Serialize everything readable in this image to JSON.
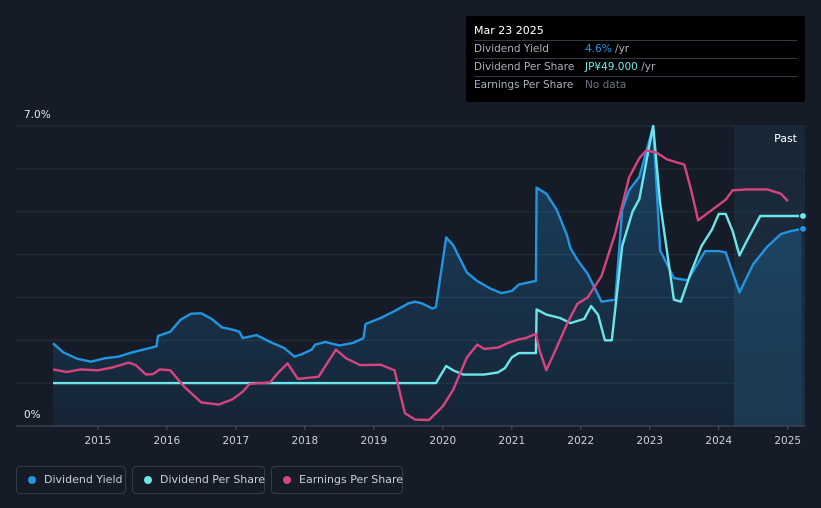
{
  "tooltip": {
    "date": "Mar 23 2025",
    "rows": [
      {
        "label": "Dividend Yield",
        "value": "4.6%",
        "unit": " /yr",
        "color": "#2394df"
      },
      {
        "label": "Dividend Per Share",
        "value": "JP¥49.000",
        "unit": " /yr",
        "color": "#6ce5e8"
      },
      {
        "label": "Earnings Per Share",
        "value": "No data",
        "unit": "",
        "color": "#6c7480"
      }
    ]
  },
  "legend": [
    {
      "label": "Dividend Yield",
      "color": "#2394df"
    },
    {
      "label": "Dividend Per Share",
      "color": "#6ce5e8"
    },
    {
      "label": "Earnings Per Share",
      "color": "#d6447f"
    }
  ],
  "chart_data": {
    "type": "line",
    "past_label": "Past",
    "y_tick_labels": [
      "7.0%",
      "0%"
    ],
    "ylim": [
      0,
      7.0
    ],
    "xlim": [
      2014.35,
      2025.25
    ],
    "x_ticks": [
      "2015",
      "2016",
      "2017",
      "2018",
      "2019",
      "2020",
      "2021",
      "2022",
      "2023",
      "2024",
      "2025"
    ],
    "past_region_start": 2024.22,
    "series": [
      {
        "name": "Dividend Yield",
        "color": "#2394df",
        "fill": true,
        "points": [
          [
            2014.35,
            1.93
          ],
          [
            2014.5,
            1.72
          ],
          [
            2014.7,
            1.57
          ],
          [
            2014.9,
            1.5
          ],
          [
            2015.1,
            1.58
          ],
          [
            2015.3,
            1.62
          ],
          [
            2015.5,
            1.72
          ],
          [
            2015.7,
            1.8
          ],
          [
            2015.85,
            1.86
          ],
          [
            2015.87,
            2.1
          ],
          [
            2016.05,
            2.2
          ],
          [
            2016.2,
            2.48
          ],
          [
            2016.35,
            2.62
          ],
          [
            2016.5,
            2.63
          ],
          [
            2016.65,
            2.5
          ],
          [
            2016.8,
            2.3
          ],
          [
            2016.95,
            2.25
          ],
          [
            2017.05,
            2.2
          ],
          [
            2017.1,
            2.05
          ],
          [
            2017.3,
            2.12
          ],
          [
            2017.5,
            1.96
          ],
          [
            2017.7,
            1.82
          ],
          [
            2017.85,
            1.62
          ],
          [
            2017.95,
            1.67
          ],
          [
            2018.1,
            1.78
          ],
          [
            2018.15,
            1.9
          ],
          [
            2018.3,
            1.96
          ],
          [
            2018.5,
            1.88
          ],
          [
            2018.7,
            1.94
          ],
          [
            2018.85,
            2.05
          ],
          [
            2018.88,
            2.38
          ],
          [
            2019.1,
            2.52
          ],
          [
            2019.3,
            2.68
          ],
          [
            2019.5,
            2.86
          ],
          [
            2019.6,
            2.9
          ],
          [
            2019.7,
            2.86
          ],
          [
            2019.85,
            2.74
          ],
          [
            2019.9,
            2.78
          ],
          [
            2020.05,
            4.4
          ],
          [
            2020.15,
            4.22
          ],
          [
            2020.35,
            3.58
          ],
          [
            2020.5,
            3.38
          ],
          [
            2020.7,
            3.2
          ],
          [
            2020.85,
            3.1
          ],
          [
            2021.0,
            3.15
          ],
          [
            2021.1,
            3.3
          ],
          [
            2021.3,
            3.37
          ],
          [
            2021.35,
            3.38
          ],
          [
            2021.36,
            5.56
          ],
          [
            2021.5,
            5.42
          ],
          [
            2021.65,
            5.05
          ],
          [
            2021.8,
            4.45
          ],
          [
            2021.85,
            4.15
          ],
          [
            2021.95,
            3.88
          ],
          [
            2022.1,
            3.55
          ],
          [
            2022.3,
            2.9
          ],
          [
            2022.5,
            2.95
          ],
          [
            2022.6,
            5.05
          ],
          [
            2022.7,
            5.5
          ],
          [
            2022.85,
            5.82
          ],
          [
            2023.0,
            6.7
          ],
          [
            2023.05,
            7.0
          ],
          [
            2023.15,
            4.1
          ],
          [
            2023.35,
            3.45
          ],
          [
            2023.55,
            3.4
          ],
          [
            2023.8,
            4.08
          ],
          [
            2024.0,
            4.08
          ],
          [
            2024.1,
            4.05
          ],
          [
            2024.3,
            3.12
          ],
          [
            2024.5,
            3.78
          ],
          [
            2024.7,
            4.18
          ],
          [
            2024.9,
            4.48
          ],
          [
            2025.05,
            4.55
          ],
          [
            2025.2,
            4.6
          ]
        ]
      },
      {
        "name": "Dividend Per Share",
        "color": "#6ce5e8",
        "fill": false,
        "points": [
          [
            2014.35,
            1.0
          ],
          [
            2019.9,
            1.0
          ],
          [
            2020.05,
            1.4
          ],
          [
            2020.15,
            1.3
          ],
          [
            2020.3,
            1.2
          ],
          [
            2020.6,
            1.2
          ],
          [
            2020.8,
            1.25
          ],
          [
            2020.9,
            1.35
          ],
          [
            2021.0,
            1.6
          ],
          [
            2021.1,
            1.7
          ],
          [
            2021.35,
            1.7
          ],
          [
            2021.36,
            2.72
          ],
          [
            2021.5,
            2.6
          ],
          [
            2021.7,
            2.52
          ],
          [
            2021.85,
            2.4
          ],
          [
            2022.05,
            2.5
          ],
          [
            2022.15,
            2.8
          ],
          [
            2022.25,
            2.6
          ],
          [
            2022.35,
            2.0
          ],
          [
            2022.45,
            2.0
          ],
          [
            2022.6,
            4.2
          ],
          [
            2022.75,
            5.0
          ],
          [
            2022.85,
            5.3
          ],
          [
            2023.0,
            6.6
          ],
          [
            2023.05,
            7.0
          ],
          [
            2023.15,
            5.2
          ],
          [
            2023.35,
            2.95
          ],
          [
            2023.45,
            2.9
          ],
          [
            2023.6,
            3.6
          ],
          [
            2023.75,
            4.2
          ],
          [
            2023.9,
            4.58
          ],
          [
            2024.0,
            4.95
          ],
          [
            2024.1,
            4.95
          ],
          [
            2024.2,
            4.55
          ],
          [
            2024.3,
            3.98
          ],
          [
            2024.4,
            4.3
          ],
          [
            2024.6,
            4.9
          ],
          [
            2024.8,
            4.9
          ],
          [
            2025.0,
            4.9
          ],
          [
            2025.2,
            4.9
          ]
        ]
      },
      {
        "name": "Earnings Per Share",
        "color": "#d6447f",
        "fill": false,
        "points": [
          [
            2014.35,
            1.32
          ],
          [
            2014.55,
            1.26
          ],
          [
            2014.75,
            1.32
          ],
          [
            2015.0,
            1.3
          ],
          [
            2015.2,
            1.36
          ],
          [
            2015.45,
            1.48
          ],
          [
            2015.55,
            1.42
          ],
          [
            2015.7,
            1.2
          ],
          [
            2015.8,
            1.21
          ],
          [
            2015.9,
            1.32
          ],
          [
            2016.05,
            1.3
          ],
          [
            2016.25,
            0.92
          ],
          [
            2016.5,
            0.55
          ],
          [
            2016.75,
            0.5
          ],
          [
            2016.95,
            0.62
          ],
          [
            2017.1,
            0.8
          ],
          [
            2017.2,
            0.98
          ],
          [
            2017.5,
            1.02
          ],
          [
            2017.6,
            1.22
          ],
          [
            2017.75,
            1.46
          ],
          [
            2017.9,
            1.1
          ],
          [
            2018.2,
            1.15
          ],
          [
            2018.45,
            1.78
          ],
          [
            2018.6,
            1.58
          ],
          [
            2018.8,
            1.42
          ],
          [
            2019.1,
            1.43
          ],
          [
            2019.3,
            1.3
          ],
          [
            2019.45,
            0.3
          ],
          [
            2019.6,
            0.15
          ],
          [
            2019.8,
            0.14
          ],
          [
            2020.0,
            0.46
          ],
          [
            2020.15,
            0.84
          ],
          [
            2020.35,
            1.6
          ],
          [
            2020.5,
            1.9
          ],
          [
            2020.6,
            1.8
          ],
          [
            2020.8,
            1.83
          ],
          [
            2020.95,
            1.94
          ],
          [
            2021.1,
            2.02
          ],
          [
            2021.2,
            2.05
          ],
          [
            2021.35,
            2.15
          ],
          [
            2021.4,
            1.78
          ],
          [
            2021.5,
            1.3
          ],
          [
            2021.6,
            1.65
          ],
          [
            2021.8,
            2.38
          ],
          [
            2021.95,
            2.85
          ],
          [
            2022.1,
            3.0
          ],
          [
            2022.3,
            3.5
          ],
          [
            2022.5,
            4.5
          ],
          [
            2022.7,
            5.8
          ],
          [
            2022.85,
            6.25
          ],
          [
            2022.95,
            6.43
          ],
          [
            2023.1,
            6.38
          ],
          [
            2023.25,
            6.22
          ],
          [
            2023.5,
            6.1
          ],
          [
            2023.6,
            5.5
          ],
          [
            2023.7,
            4.8
          ],
          [
            2023.85,
            4.98
          ],
          [
            2024.1,
            5.28
          ],
          [
            2024.2,
            5.5
          ],
          [
            2024.4,
            5.52
          ],
          [
            2024.7,
            5.52
          ],
          [
            2024.9,
            5.42
          ],
          [
            2025.0,
            5.25
          ]
        ]
      }
    ]
  }
}
